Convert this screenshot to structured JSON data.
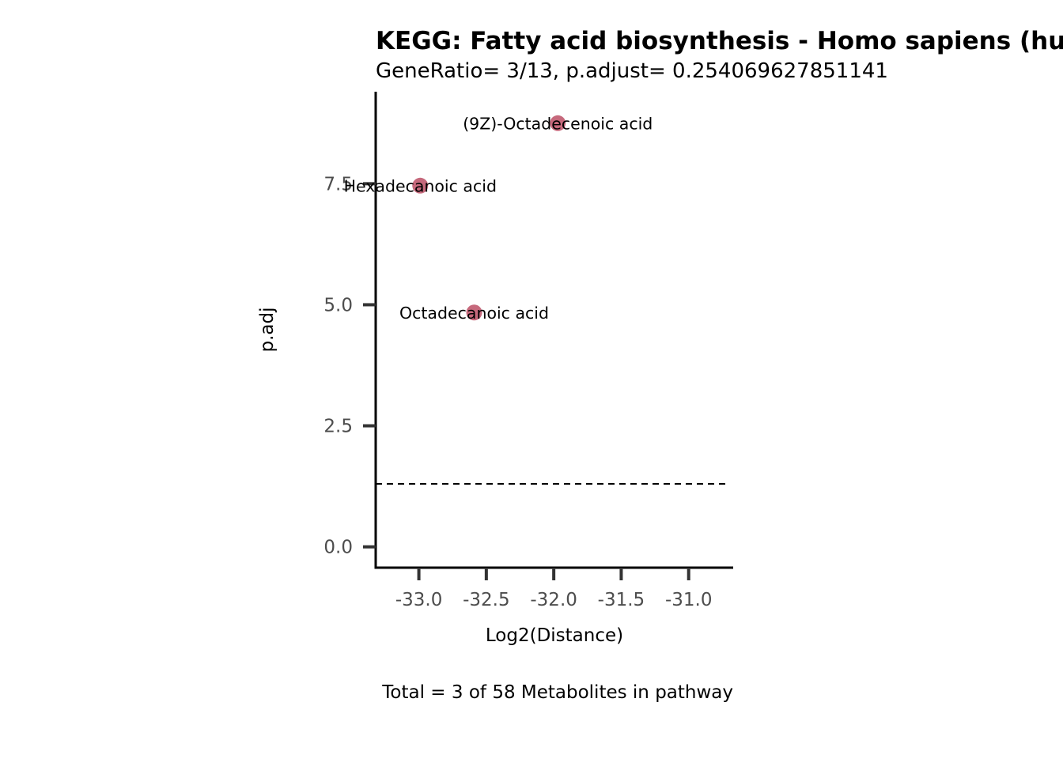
{
  "chart_data": {
    "type": "scatter",
    "title": "KEGG: Fatty acid biosynthesis - Homo sapiens (human)",
    "subtitle": "GeneRatio= 3/13, p.adjust= 0.254069627851141",
    "xlabel": "Log2(Distance)",
    "ylabel": "p.adj",
    "caption": "Total = 3 of 58 Metabolites in pathway",
    "xlim": [
      -33.32,
      -30.67
    ],
    "ylim": [
      -0.43,
      9.4
    ],
    "x_ticks": [
      -33.0,
      -32.5,
      -32.0,
      -31.5,
      -31.0
    ],
    "x_tick_labels": [
      "-33.0",
      "-32.5",
      "-32.0",
      "-31.5",
      "-31.0"
    ],
    "y_ticks": [
      0.0,
      2.5,
      5.0,
      7.5
    ],
    "y_tick_labels": [
      "0.0",
      "2.5",
      "5.0",
      "7.5"
    ],
    "threshold_line": {
      "y": 1.3,
      "style": "dashed"
    },
    "grid": false,
    "point_color": "#c0596e",
    "points": [
      {
        "label": "(9Z)-Octadecenoic acid",
        "x": -31.97,
        "y": 8.75
      },
      {
        "label": "Hexadecanoic acid",
        "x": -32.99,
        "y": 7.46
      },
      {
        "label": "Octadecanoic acid",
        "x": -32.59,
        "y": 4.84
      }
    ]
  }
}
